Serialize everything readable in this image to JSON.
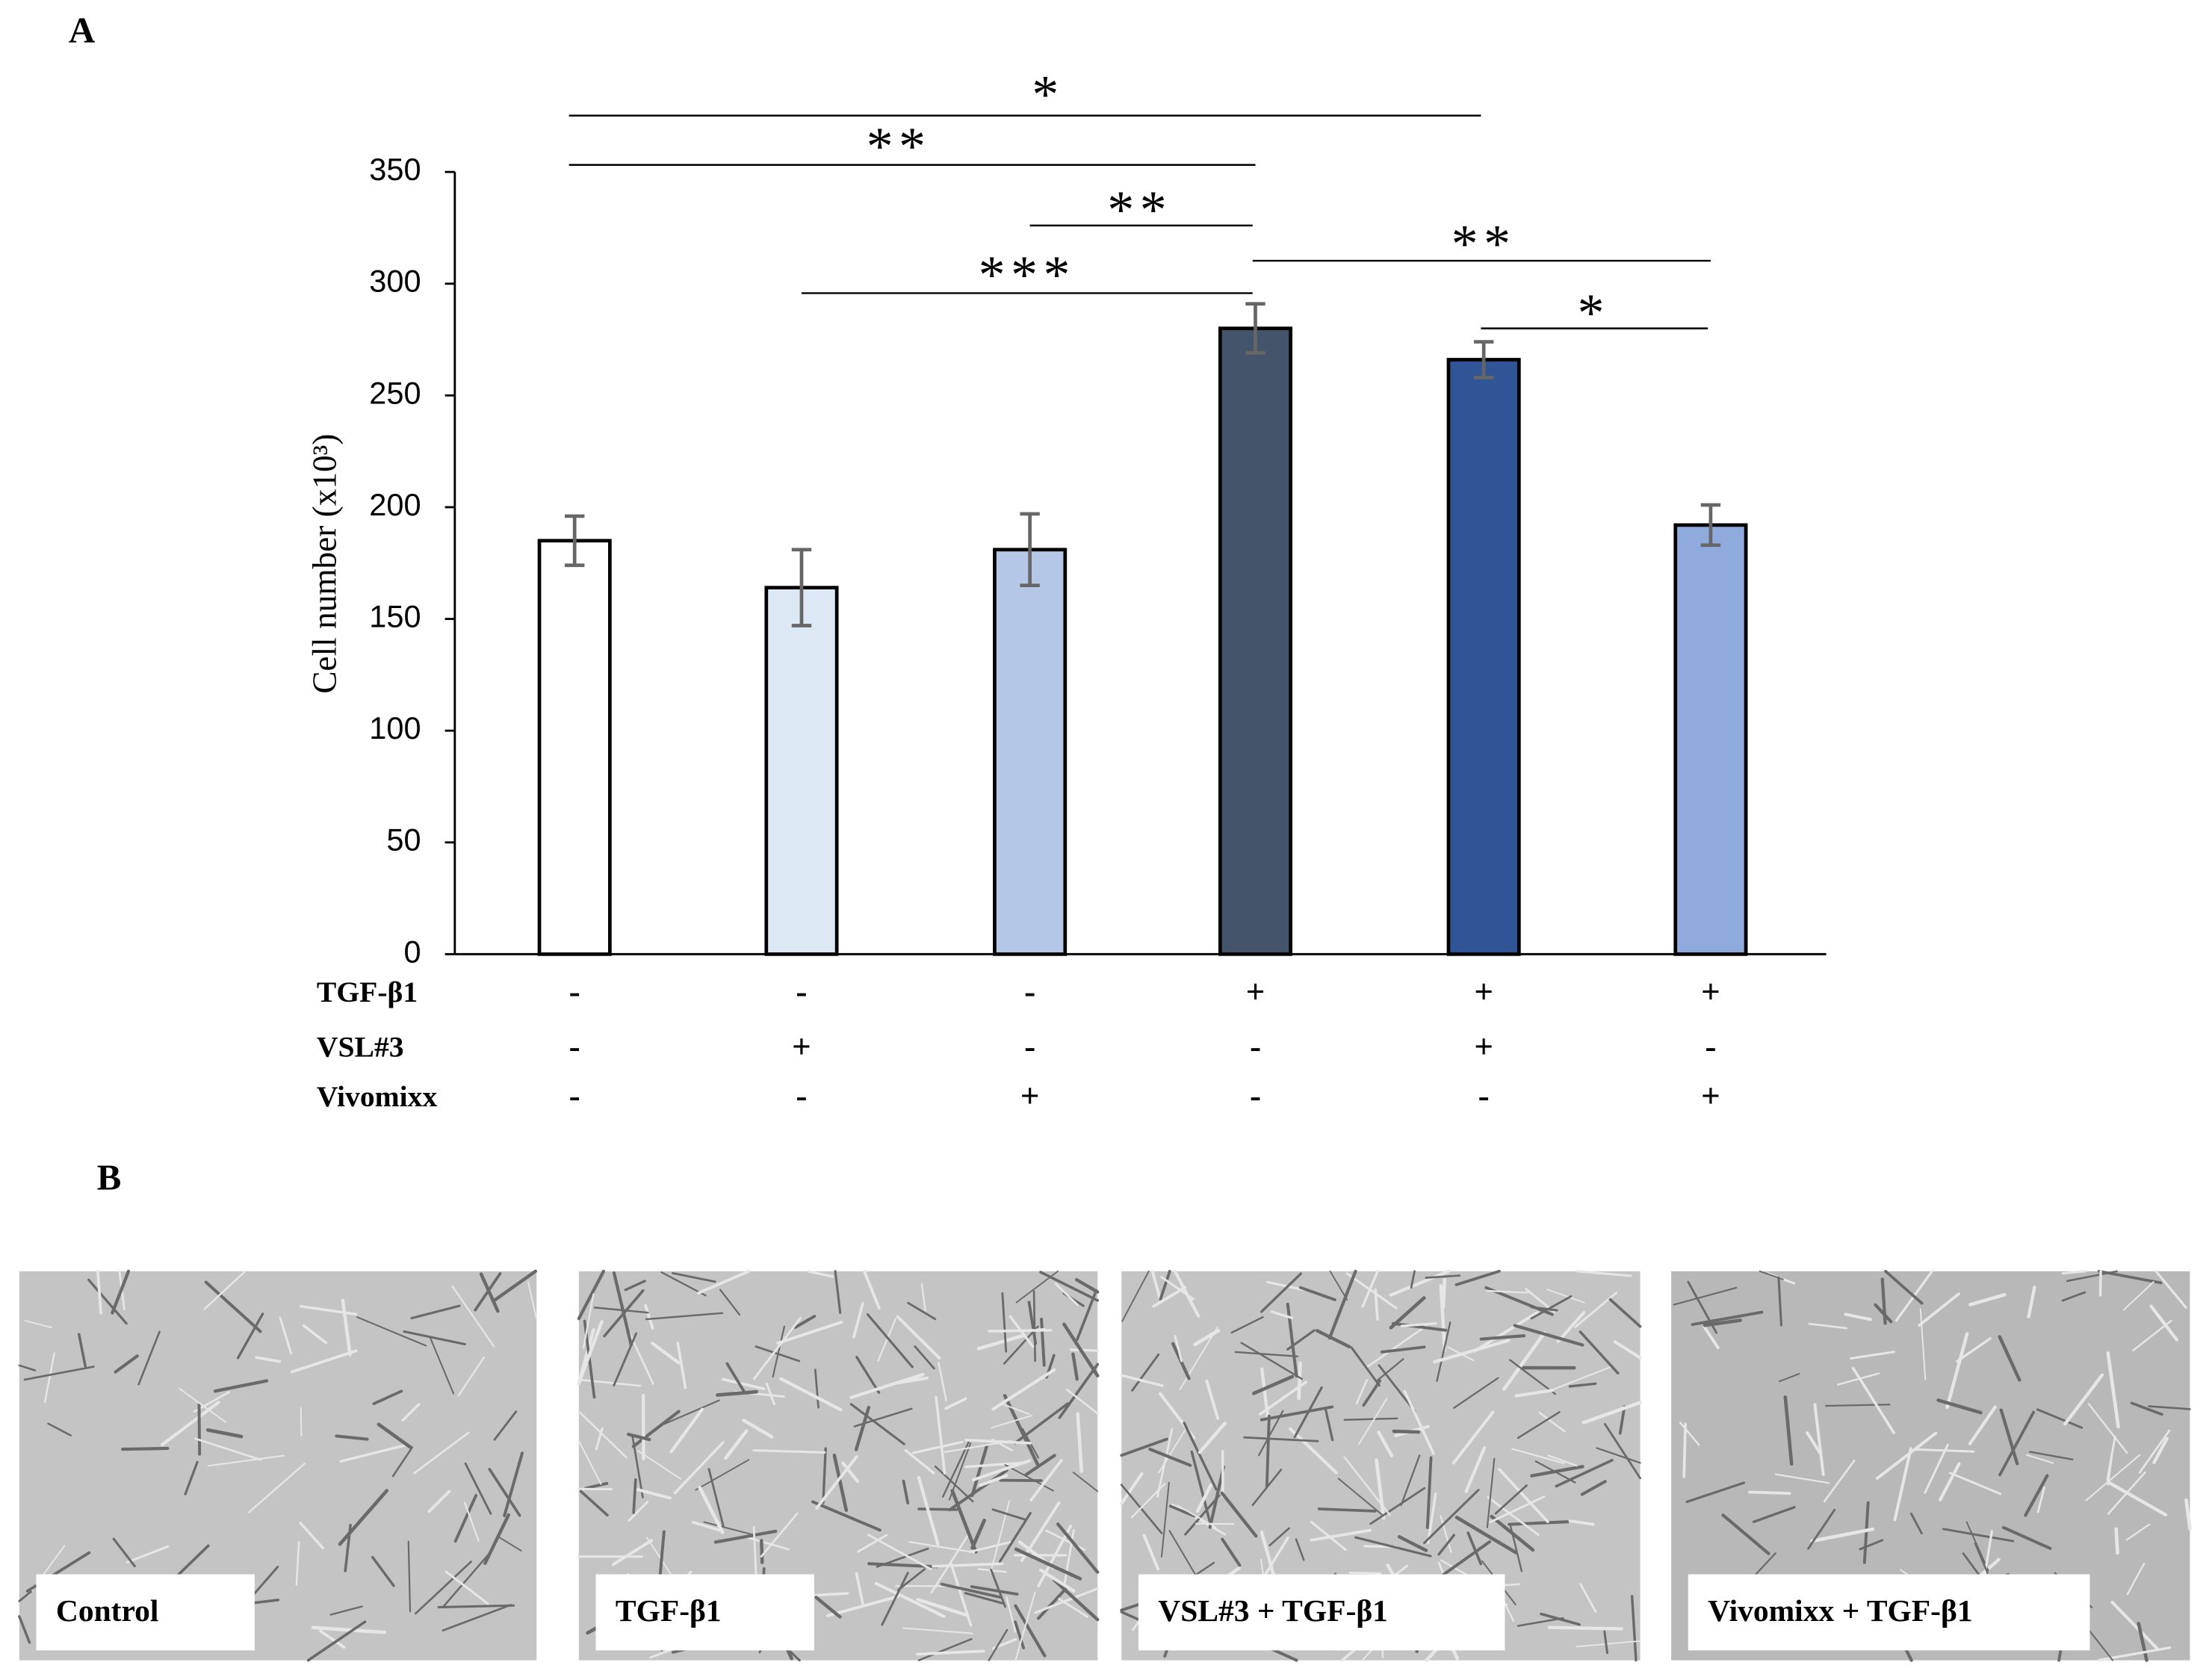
{
  "chart_data": {
    "type": "bar",
    "ylabel": "Cell number (x10³)",
    "categories": [
      null,
      null,
      null,
      null,
      null,
      null
    ],
    "values": [
      185,
      164,
      181,
      280,
      266,
      192
    ],
    "errors": [
      11,
      17,
      16,
      11,
      8,
      9
    ],
    "colors": [
      "#ffffff",
      "#dde8f5",
      "#b4c7e7",
      "#44546a",
      "#2f5597",
      "#8faadc"
    ],
    "ylim": [
      0,
      350
    ],
    "yticks": [
      0,
      50,
      100,
      150,
      200,
      250,
      300,
      350
    ],
    "treatments": [
      {
        "name": "TGF-β1",
        "signs": [
          "-",
          "-",
          "-",
          "+",
          "+",
          "+"
        ]
      },
      {
        "name": "VSL#3",
        "signs": [
          "-",
          "+",
          "-",
          "-",
          "+",
          "-"
        ]
      },
      {
        "name": "Vivomixx",
        "signs": [
          "-",
          "-",
          "+",
          "-",
          "-",
          "+"
        ]
      }
    ],
    "annotations": [
      "*",
      "**",
      "**",
      "***",
      "**",
      "*"
    ]
  },
  "panel_labels": [
    "A",
    "B"
  ],
  "images": [
    {
      "caption": "Control"
    },
    {
      "caption": "TGF-β1"
    },
    {
      "caption": "VSL#3 + TGF-β1"
    },
    {
      "caption": "Vivomixx + TGF-β1"
    }
  ]
}
